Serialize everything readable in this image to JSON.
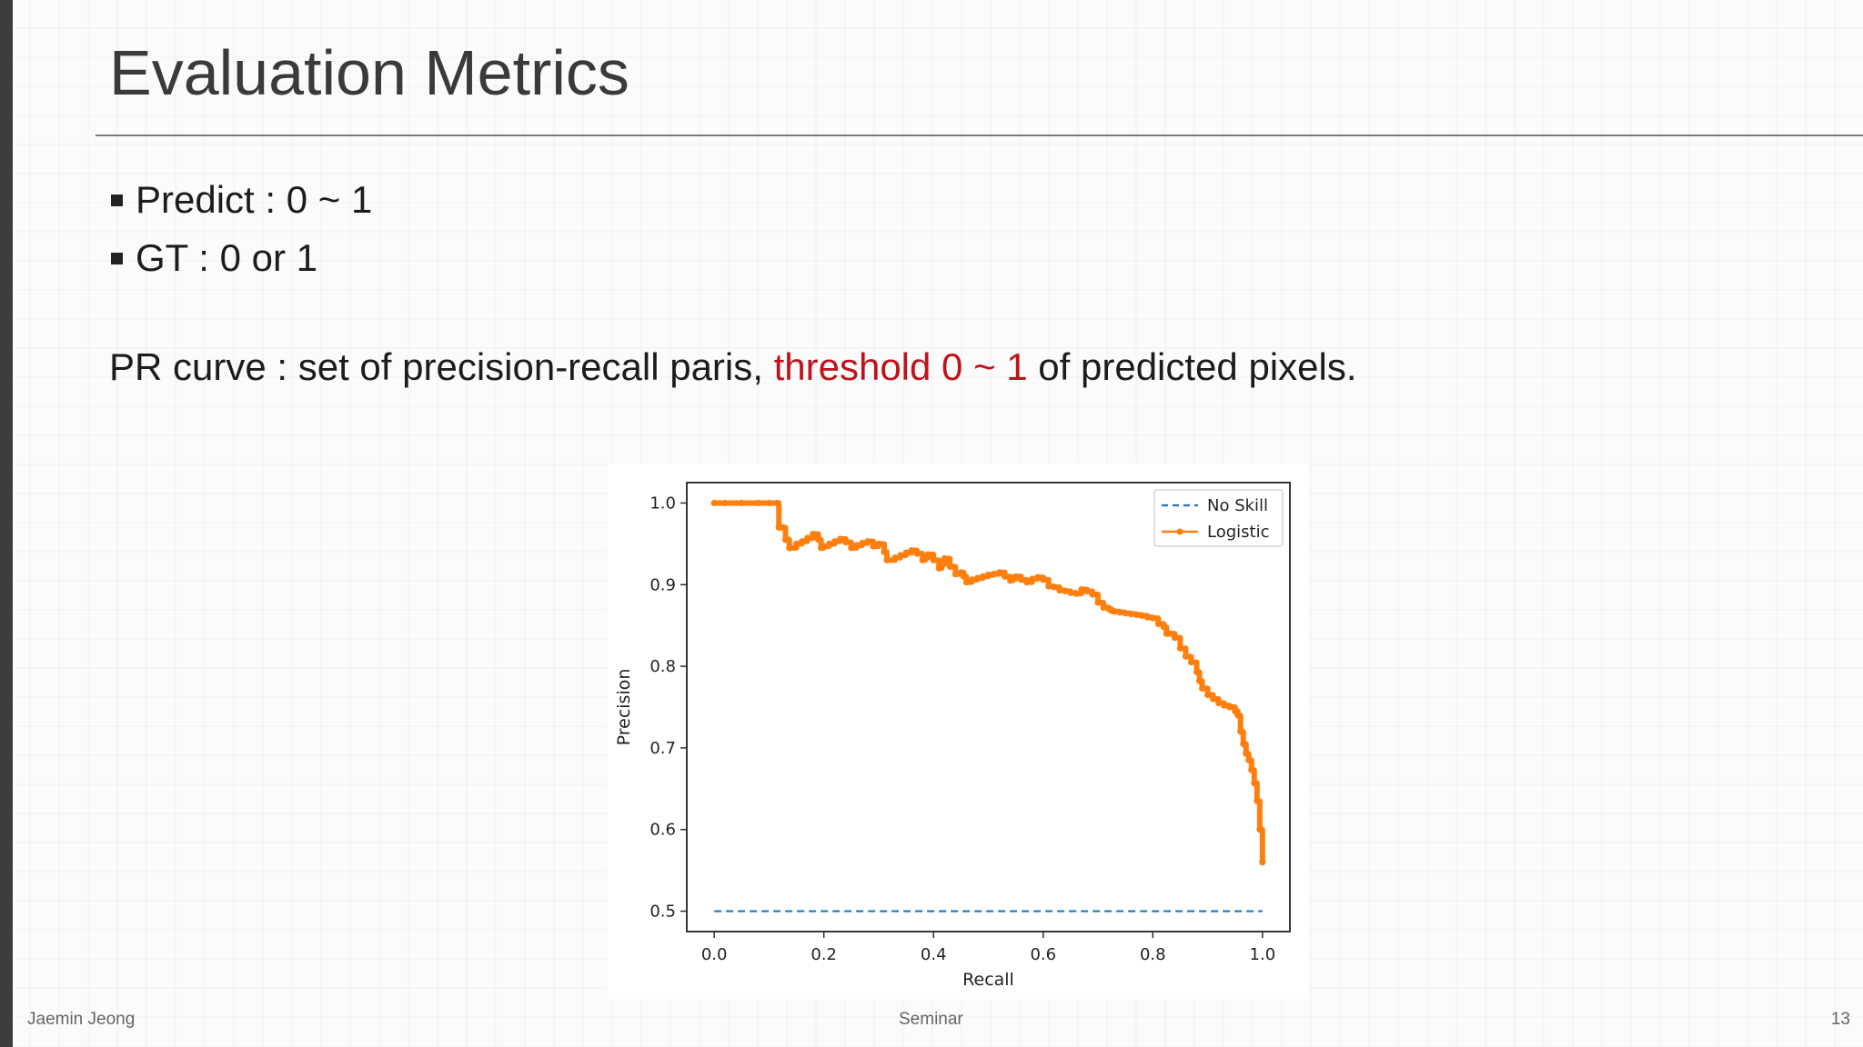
{
  "slide": {
    "title": "Evaluation Metrics",
    "bullets": [
      {
        "text": "Predict : 0 ~ 1"
      },
      {
        "text": "GT : 0 or 1"
      }
    ],
    "pr_text": {
      "before": "PR curve : set of precision-recall paris, ",
      "highlight": "threshold 0 ~ 1",
      "after": " of predicted pixels."
    },
    "footer": {
      "left": "Jaemin Jeong",
      "center": "Seminar",
      "right": "13"
    }
  },
  "colors": {
    "highlight": "#c0121b",
    "no_skill": "#1f77b4",
    "logistic": "#ff7f0e"
  },
  "chart_data": {
    "type": "line",
    "xlabel": "Recall",
    "ylabel": "Precision",
    "xlim": [
      -0.05,
      1.05
    ],
    "ylim": [
      0.475,
      1.025
    ],
    "xticks": [
      0.0,
      0.2,
      0.4,
      0.6,
      0.8,
      1.0
    ],
    "yticks": [
      0.5,
      0.6,
      0.7,
      0.8,
      0.9,
      1.0
    ],
    "grid": false,
    "legend_position": "top-right",
    "series": [
      {
        "name": "No Skill",
        "style": "dashed",
        "x": [
          0.0,
          1.0
        ],
        "y": [
          0.5,
          0.5
        ]
      },
      {
        "name": "Logistic",
        "style": "solid-marker",
        "x": [
          0.0,
          0.02,
          0.05,
          0.08,
          0.1,
          0.115,
          0.118,
          0.125,
          0.13,
          0.135,
          0.137,
          0.14,
          0.15,
          0.16,
          0.17,
          0.18,
          0.19,
          0.195,
          0.2,
          0.21,
          0.22,
          0.23,
          0.24,
          0.25,
          0.26,
          0.27,
          0.28,
          0.29,
          0.3,
          0.31,
          0.315,
          0.33,
          0.34,
          0.35,
          0.36,
          0.37,
          0.38,
          0.385,
          0.39,
          0.4,
          0.41,
          0.415,
          0.42,
          0.43,
          0.44,
          0.45,
          0.455,
          0.46,
          0.47,
          0.48,
          0.49,
          0.5,
          0.51,
          0.52,
          0.53,
          0.54,
          0.545,
          0.55,
          0.56,
          0.57,
          0.58,
          0.59,
          0.6,
          0.61,
          0.62,
          0.63,
          0.64,
          0.65,
          0.66,
          0.67,
          0.68,
          0.69,
          0.7,
          0.71,
          0.72,
          0.725,
          0.73,
          0.74,
          0.75,
          0.76,
          0.77,
          0.78,
          0.79,
          0.8,
          0.81,
          0.82,
          0.825,
          0.83,
          0.84,
          0.85,
          0.86,
          0.87,
          0.88,
          0.885,
          0.89,
          0.9,
          0.91,
          0.92,
          0.93,
          0.94,
          0.95,
          0.955,
          0.96,
          0.965,
          0.97,
          0.975,
          0.98,
          0.985,
          0.99,
          0.995,
          1.0
        ],
        "y": [
          1.0,
          1.0,
          1.0,
          1.0,
          1.0,
          1.0,
          0.97,
          0.97,
          0.955,
          0.955,
          0.945,
          0.945,
          0.95,
          0.953,
          0.957,
          0.962,
          0.955,
          0.945,
          0.947,
          0.95,
          0.953,
          0.956,
          0.952,
          0.945,
          0.948,
          0.951,
          0.953,
          0.947,
          0.95,
          0.94,
          0.93,
          0.933,
          0.936,
          0.939,
          0.942,
          0.938,
          0.93,
          0.933,
          0.937,
          0.93,
          0.92,
          0.925,
          0.932,
          0.922,
          0.913,
          0.915,
          0.91,
          0.903,
          0.906,
          0.908,
          0.91,
          0.912,
          0.913,
          0.915,
          0.91,
          0.905,
          0.907,
          0.91,
          0.906,
          0.903,
          0.907,
          0.909,
          0.906,
          0.898,
          0.897,
          0.893,
          0.892,
          0.89,
          0.889,
          0.894,
          0.892,
          0.888,
          0.878,
          0.872,
          0.87,
          0.868,
          0.867,
          0.866,
          0.865,
          0.864,
          0.863,
          0.862,
          0.86,
          0.859,
          0.852,
          0.848,
          0.84,
          0.84,
          0.835,
          0.822,
          0.812,
          0.805,
          0.793,
          0.782,
          0.773,
          0.765,
          0.76,
          0.755,
          0.752,
          0.75,
          0.745,
          0.74,
          0.72,
          0.705,
          0.693,
          0.685,
          0.673,
          0.657,
          0.635,
          0.6,
          0.56
        ]
      }
    ]
  }
}
